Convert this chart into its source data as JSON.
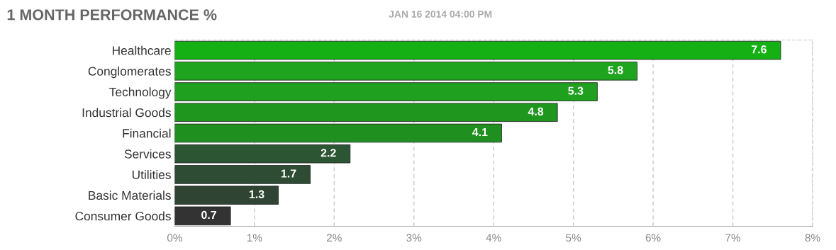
{
  "chart_data": {
    "type": "bar",
    "orientation": "horizontal",
    "title": "1 MONTH PERFORMANCE %",
    "subtitle": "JAN 16 2014 04:00 PM",
    "categories": [
      "Healthcare",
      "Conglomerates",
      "Technology",
      "Industrial Goods",
      "Financial",
      "Services",
      "Utilities",
      "Basic Materials",
      "Consumer Goods"
    ],
    "values": [
      7.6,
      5.8,
      5.3,
      4.8,
      4.1,
      2.2,
      1.7,
      1.3,
      0.7
    ],
    "colors": [
      "#14b014",
      "#1ea41e",
      "#1fa01f",
      "#1f971f",
      "#1f8f1f",
      "#2c5533",
      "#2e4c34",
      "#2f4432",
      "#333333"
    ],
    "xlim": [
      0,
      8
    ],
    "xticks": [
      {
        "value": 0,
        "label": "0%"
      },
      {
        "value": 1,
        "label": "1%"
      },
      {
        "value": 2,
        "label": "2%"
      },
      {
        "value": 3,
        "label": "3%"
      },
      {
        "value": 4,
        "label": "4%"
      },
      {
        "value": 5,
        "label": "5%"
      },
      {
        "value": 6,
        "label": "6%"
      },
      {
        "value": 7,
        "label": "7%"
      },
      {
        "value": 8,
        "label": "8%"
      }
    ],
    "grid": "x",
    "data_labels": true
  }
}
